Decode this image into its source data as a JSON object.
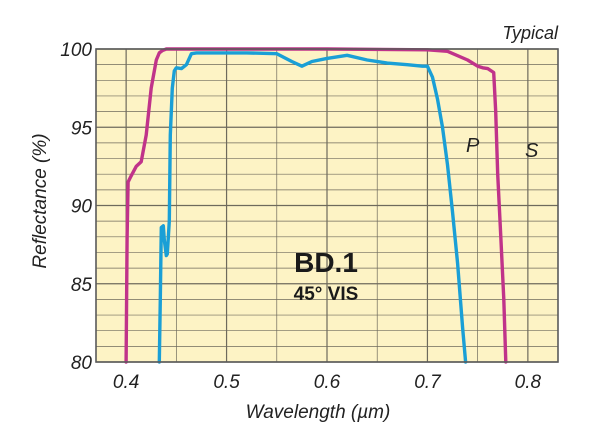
{
  "chart_data": {
    "type": "line",
    "note": "Typical",
    "title": "BD.1",
    "subtitle": "45° VIS",
    "xlabel": "Wavelength (µm)",
    "ylabel": "Reflectance (%)",
    "xlim": [
      0.37,
      0.83
    ],
    "ylim": [
      80,
      100
    ],
    "x_ticks": [
      0.4,
      0.5,
      0.6,
      0.7,
      0.8
    ],
    "x_tick_labels": [
      "0.4",
      "0.5",
      "0.6",
      "0.7",
      "0.8"
    ],
    "x_minor_ticks": [
      0.45,
      0.55,
      0.65,
      0.75
    ],
    "y_ticks": [
      80,
      85,
      90,
      95,
      100
    ],
    "y_tick_labels": [
      "80",
      "85",
      "90",
      "95",
      "100"
    ],
    "y_minor_step": 1,
    "grid": true,
    "colors": {
      "plot_bg": "#fdf3c5",
      "grid": "#6e6a5c",
      "frame": "#5a5a5a",
      "S": "#c0338a",
      "P": "#1a9fd6"
    },
    "series": [
      {
        "name": "S",
        "color": "#c0338a",
        "x": [
          0.4,
          0.401,
          0.402,
          0.405,
          0.41,
          0.415,
          0.42,
          0.425,
          0.43,
          0.433,
          0.436,
          0.44,
          0.45,
          0.5,
          0.6,
          0.7,
          0.72,
          0.74,
          0.75,
          0.755,
          0.76,
          0.766,
          0.768,
          0.77,
          0.773,
          0.776,
          0.778
        ],
        "values": [
          80.0,
          88.0,
          91.5,
          91.9,
          92.5,
          92.8,
          94.5,
          97.5,
          99.3,
          99.75,
          99.9,
          100.0,
          100.0,
          100.0,
          100.0,
          99.95,
          99.85,
          99.3,
          98.9,
          98.8,
          98.75,
          98.5,
          96.0,
          92.0,
          88.0,
          84.0,
          80.0
        ]
      },
      {
        "name": "P",
        "color": "#1a9fd6",
        "x": [
          0.433,
          0.434,
          0.435,
          0.437,
          0.438,
          0.44,
          0.441,
          0.443,
          0.444,
          0.446,
          0.448,
          0.45,
          0.455,
          0.46,
          0.465,
          0.47,
          0.48,
          0.5,
          0.52,
          0.55,
          0.565,
          0.575,
          0.585,
          0.6,
          0.62,
          0.64,
          0.66,
          0.68,
          0.695,
          0.7,
          0.705,
          0.71,
          0.715,
          0.72,
          0.725,
          0.73,
          0.735,
          0.738
        ],
        "values": [
          80.0,
          84.0,
          88.6,
          88.7,
          87.8,
          86.8,
          86.9,
          89.0,
          94.5,
          97.5,
          98.6,
          98.8,
          98.75,
          99.0,
          99.7,
          99.75,
          99.75,
          99.75,
          99.75,
          99.7,
          99.2,
          98.9,
          99.2,
          99.4,
          99.6,
          99.3,
          99.1,
          99.0,
          98.9,
          98.9,
          98.2,
          96.8,
          95.0,
          92.6,
          89.6,
          86.3,
          82.2,
          80.0
        ]
      }
    ]
  }
}
